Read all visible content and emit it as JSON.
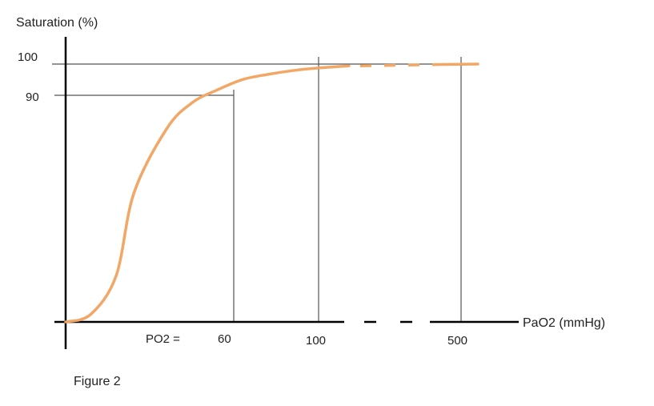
{
  "chart_data": {
    "type": "line",
    "ylabel": "Saturation (%)",
    "xlabel": "PaO2 (mmHg)",
    "x_prefix": "PO2 =",
    "caption": "Figure 2",
    "y_ticks": [
      "100",
      "90"
    ],
    "x_ticks": [
      "60",
      "100",
      "500"
    ],
    "x_axis_break": true,
    "series": [
      {
        "x": [
          0,
          10,
          20,
          27,
          40,
          50,
          60,
          70,
          80,
          90,
          100,
          112,
          125,
          250,
          500
        ],
        "y": [
          0,
          3,
          18,
          50,
          75,
          85,
          90,
          94,
          96,
          97.5,
          98.5,
          99.3,
          99.6,
          99.8,
          100
        ],
        "color": "#F2A766"
      }
    ],
    "colors": {
      "curve": "#F2A766",
      "axis": "#000000",
      "guide": "#555555"
    }
  }
}
